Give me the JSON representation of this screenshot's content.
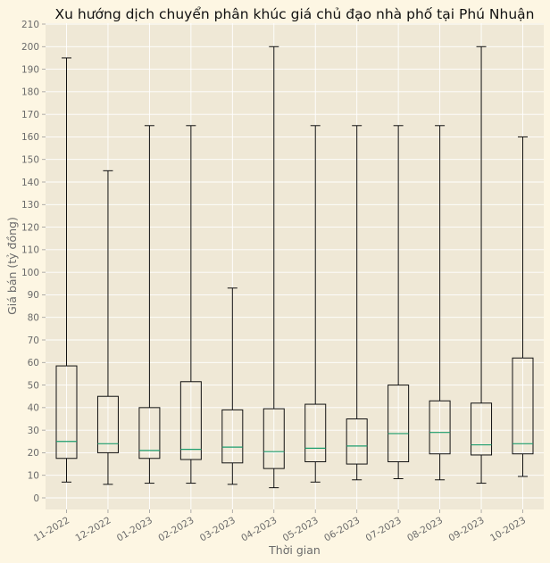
{
  "chart_data": {
    "type": "box",
    "title": "Xu hướng dịch chuyển phân khúc giá chủ đạo nhà phố tại Phú Nhuận",
    "xlabel": "Thời gian",
    "ylabel": "Giá bán (tỷ đồng)",
    "ylim": [
      0,
      210
    ],
    "ytick_step": 10,
    "grid": true,
    "colors": {
      "figure_bg": "#fdf6e3",
      "axes_bg": "#efe8d6",
      "median": "#1e9e6e",
      "box": "#111111"
    },
    "categories": [
      "11-2022",
      "12-2022",
      "01-2023",
      "02-2023",
      "03-2023",
      "04-2023",
      "05-2023",
      "06-2023",
      "07-2023",
      "08-2023",
      "09-2023",
      "10-2023"
    ],
    "boxes": [
      {
        "whisker_low": 7,
        "q1": 17.5,
        "median": 25,
        "q3": 58.5,
        "whisker_high": 195
      },
      {
        "whisker_low": 6,
        "q1": 20,
        "median": 24,
        "q3": 45,
        "whisker_high": 145
      },
      {
        "whisker_low": 6.5,
        "q1": 17.5,
        "median": 21,
        "q3": 40,
        "whisker_high": 165
      },
      {
        "whisker_low": 6.5,
        "q1": 17,
        "median": 21.5,
        "q3": 51.5,
        "whisker_high": 165
      },
      {
        "whisker_low": 6,
        "q1": 15.5,
        "median": 22.5,
        "q3": 39,
        "whisker_high": 93
      },
      {
        "whisker_low": 4.5,
        "q1": 13,
        "median": 20.5,
        "q3": 39.5,
        "whisker_high": 200
      },
      {
        "whisker_low": 7,
        "q1": 16,
        "median": 22,
        "q3": 41.5,
        "whisker_high": 165
      },
      {
        "whisker_low": 8,
        "q1": 15,
        "median": 23,
        "q3": 35,
        "whisker_high": 165
      },
      {
        "whisker_low": 8.5,
        "q1": 16,
        "median": 28.5,
        "q3": 50,
        "whisker_high": 165
      },
      {
        "whisker_low": 8,
        "q1": 19.5,
        "median": 29,
        "q3": 43,
        "whisker_high": 165
      },
      {
        "whisker_low": 6.5,
        "q1": 19,
        "median": 23.5,
        "q3": 42,
        "whisker_high": 200
      },
      {
        "whisker_low": 9.5,
        "q1": 19.5,
        "median": 24,
        "q3": 62,
        "whisker_high": 160
      }
    ]
  }
}
